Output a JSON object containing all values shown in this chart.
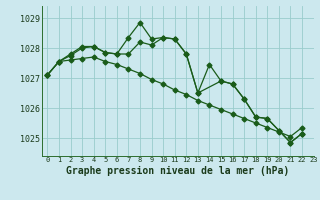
{
  "title": "Graphe pression niveau de la mer (hPa)",
  "bg_color": "#cce8ee",
  "grid_color": "#99cccc",
  "line_color": "#1a5c1a",
  "xlim": [
    -0.5,
    23
  ],
  "ylim": [
    1024.4,
    1029.4
  ],
  "yticks": [
    1025,
    1026,
    1027,
    1028,
    1029
  ],
  "xticks": [
    0,
    1,
    2,
    3,
    4,
    5,
    6,
    7,
    8,
    9,
    10,
    11,
    12,
    13,
    14,
    15,
    16,
    17,
    18,
    19,
    20,
    21,
    22,
    23
  ],
  "xtick_labels": [
    "0",
    "1",
    "2",
    "3",
    "4",
    "5",
    "6",
    "7",
    "8",
    "9",
    "10",
    "11",
    "12",
    "13",
    "14",
    "15",
    "16",
    "17",
    "18",
    "19",
    "20",
    "21",
    "22",
    "23"
  ],
  "series1_x": [
    0,
    1,
    2,
    3,
    4,
    5,
    6,
    7,
    8,
    9,
    10,
    11,
    12,
    13,
    15,
    16,
    17,
    18,
    19,
    20,
    21,
    22
  ],
  "series1_y": [
    1027.1,
    1027.55,
    1027.75,
    1028.0,
    1028.05,
    1027.85,
    1027.8,
    1028.35,
    1028.85,
    1028.3,
    1028.35,
    1028.3,
    1027.8,
    1026.5,
    1026.9,
    1026.8,
    1026.3,
    1025.7,
    1025.65,
    1025.25,
    1024.85,
    1025.15
  ],
  "series2_x": [
    0,
    1,
    2,
    3,
    4,
    5,
    6,
    7,
    8,
    9,
    10,
    11,
    12,
    13,
    14,
    15,
    16,
    17,
    18,
    19,
    20,
    21,
    22
  ],
  "series2_y": [
    1027.1,
    1027.55,
    1027.8,
    1028.05,
    1028.05,
    1027.85,
    1027.8,
    1027.8,
    1028.2,
    1028.1,
    1028.35,
    1028.3,
    1027.8,
    1026.5,
    1027.45,
    1026.9,
    1026.8,
    1026.3,
    1025.7,
    1025.65,
    1025.25,
    1024.85,
    1025.15
  ],
  "series3_x": [
    0,
    1,
    2,
    3,
    4,
    5,
    6,
    7,
    8,
    9,
    10,
    11,
    12,
    13,
    14,
    15,
    16,
    17,
    18,
    19,
    20,
    21,
    22
  ],
  "series3_y": [
    1027.1,
    1027.55,
    1027.6,
    1027.65,
    1027.7,
    1027.55,
    1027.45,
    1027.3,
    1027.15,
    1026.95,
    1026.8,
    1026.6,
    1026.45,
    1026.25,
    1026.1,
    1025.95,
    1025.8,
    1025.65,
    1025.5,
    1025.35,
    1025.2,
    1025.05,
    1025.35
  ],
  "ylabel_fontsize": 6,
  "xlabel_fontsize": 5,
  "title_fontsize": 7,
  "marker_size": 2.5
}
